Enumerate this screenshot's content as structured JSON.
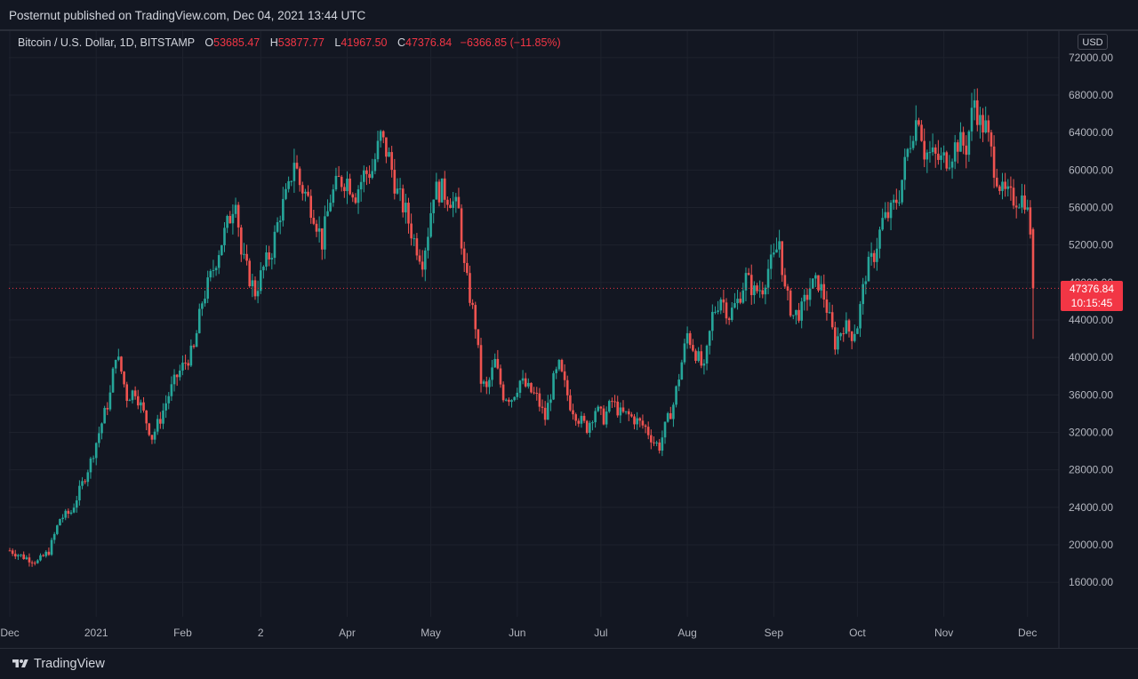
{
  "header": {
    "published": "Posternut published on TradingView.com, Dec 04, 2021 13:44 UTC"
  },
  "legend": {
    "symbol": "Bitcoin / U.S. Dollar, 1D, BITSTAMP",
    "o_key": "O",
    "o_val": "53685.47",
    "h_key": "H",
    "h_val": "53877.77",
    "l_key": "L",
    "l_val": "41967.50",
    "c_key": "C",
    "c_val": "47376.84",
    "change": "−6366.85 (−11.85%)"
  },
  "currency": "USD",
  "price_label": {
    "price": "47376.84",
    "countdown": "10:15:45"
  },
  "footer": {
    "brand": "TradingView"
  },
  "colors": {
    "up": "#26a69a",
    "down": "#ef5350",
    "background": "#131722",
    "grid": "#1e222d",
    "current_price": "#f23645"
  },
  "chart_data": {
    "type": "candlestick",
    "symbol": "BTCUSD",
    "interval": "1D",
    "exchange": "BITSTAMP",
    "ylim": [
      12000,
      75000
    ],
    "y_ticks": [
      16000,
      20000,
      24000,
      28000,
      32000,
      36000,
      40000,
      44000,
      48000,
      52000,
      56000,
      60000,
      64000,
      68000,
      72000
    ],
    "y_tick_labels": [
      "16000.00",
      "20000.00",
      "24000.00",
      "28000.00",
      "32000.00",
      "36000.00",
      "40000.00",
      "44000.00",
      "48000.00",
      "52000.00",
      "56000.00",
      "60000.00",
      "64000.00",
      "68000.00",
      "72000.00"
    ],
    "x_ticks": [
      {
        "label": "Dec",
        "day": 0
      },
      {
        "label": "2021",
        "day": 31
      },
      {
        "label": "Feb",
        "day": 62
      },
      {
        "label": "2",
        "day": 90
      },
      {
        "label": "Apr",
        "day": 121
      },
      {
        "label": "May",
        "day": 151
      },
      {
        "label": "Jun",
        "day": 182
      },
      {
        "label": "Jul",
        "day": 212
      },
      {
        "label": "Aug",
        "day": 243
      },
      {
        "label": "Sep",
        "day": 274
      },
      {
        "label": "Oct",
        "day": 304
      },
      {
        "label": "Nov",
        "day": 335
      },
      {
        "label": "Dec",
        "day": 365
      }
    ],
    "first_day": "2020-12-01",
    "last_price": 47376.84,
    "close_path": [
      [
        0,
        19400
      ],
      [
        5,
        18700
      ],
      [
        10,
        18200
      ],
      [
        14,
        19300
      ],
      [
        18,
        22800
      ],
      [
        22,
        23500
      ],
      [
        26,
        26500
      ],
      [
        29,
        28900
      ],
      [
        33,
        33000
      ],
      [
        36,
        36000
      ],
      [
        38,
        40500
      ],
      [
        40,
        38500
      ],
      [
        42,
        35800
      ],
      [
        45,
        36500
      ],
      [
        48,
        34000
      ],
      [
        51,
        31500
      ],
      [
        54,
        33500
      ],
      [
        57,
        36000
      ],
      [
        60,
        38000
      ],
      [
        63,
        39500
      ],
      [
        66,
        40800
      ],
      [
        69,
        46000
      ],
      [
        72,
        48500
      ],
      [
        75,
        51500
      ],
      [
        79,
        55000
      ],
      [
        81,
        57500
      ],
      [
        83,
        51000
      ],
      [
        86,
        48500
      ],
      [
        88,
        47000
      ],
      [
        91,
        49500
      ],
      [
        94,
        51500
      ],
      [
        97,
        55500
      ],
      [
        100,
        57800
      ],
      [
        102,
        61200
      ],
      [
        104,
        58500
      ],
      [
        106,
        57500
      ],
      [
        109,
        55500
      ],
      [
        112,
        52300
      ],
      [
        115,
        57000
      ],
      [
        118,
        58800
      ],
      [
        121,
        59000
      ],
      [
        124,
        57500
      ],
      [
        127,
        59500
      ],
      [
        130,
        60000
      ],
      [
        133,
        63500
      ],
      [
        136,
        61300
      ],
      [
        139,
        57500
      ],
      [
        142,
        55500
      ],
      [
        145,
        52500
      ],
      [
        148,
        50500
      ],
      [
        150,
        53500
      ],
      [
        152,
        57800
      ],
      [
        155,
        57800
      ],
      [
        158,
        57000
      ],
      [
        161,
        55500
      ],
      [
        163,
        49500
      ],
      [
        165,
        46500
      ],
      [
        167,
        43500
      ],
      [
        169,
        37500
      ],
      [
        171,
        36500
      ],
      [
        174,
        39500
      ],
      [
        177,
        36000
      ],
      [
        180,
        35700
      ],
      [
        183,
        37500
      ],
      [
        186,
        36600
      ],
      [
        189,
        35700
      ],
      [
        192,
        33500
      ],
      [
        195,
        37500
      ],
      [
        197,
        39000
      ],
      [
        199,
        37000
      ],
      [
        201,
        35000
      ],
      [
        204,
        33500
      ],
      [
        207,
        32500
      ],
      [
        210,
        34500
      ],
      [
        213,
        33500
      ],
      [
        216,
        35300
      ],
      [
        219,
        34000
      ],
      [
        222,
        33800
      ],
      [
        225,
        33200
      ],
      [
        228,
        32500
      ],
      [
        231,
        31000
      ],
      [
        233,
        30500
      ],
      [
        235,
        32500
      ],
      [
        238,
        35000
      ],
      [
        241,
        39500
      ],
      [
        243,
        42500
      ],
      [
        246,
        40500
      ],
      [
        249,
        38500
      ],
      [
        252,
        44500
      ],
      [
        255,
        46500
      ],
      [
        258,
        44500
      ],
      [
        261,
        46000
      ],
      [
        264,
        48500
      ],
      [
        267,
        47000
      ],
      [
        270,
        47500
      ],
      [
        272,
        49500
      ],
      [
        274,
        50500
      ],
      [
        276,
        52500
      ],
      [
        278,
        47000
      ],
      [
        281,
        44500
      ],
      [
        284,
        45000
      ],
      [
        287,
        47500
      ],
      [
        290,
        48000
      ],
      [
        292,
        46500
      ],
      [
        294,
        44000
      ],
      [
        296,
        41500
      ],
      [
        299,
        43500
      ],
      [
        302,
        42500
      ],
      [
        304,
        43500
      ],
      [
        307,
        49000
      ],
      [
        310,
        51000
      ],
      [
        313,
        54500
      ],
      [
        316,
        55500
      ],
      [
        319,
        57500
      ],
      [
        322,
        62000
      ],
      [
        324,
        64500
      ],
      [
        326,
        66000
      ],
      [
        328,
        62000
      ],
      [
        331,
        61500
      ],
      [
        334,
        61000
      ],
      [
        337,
        61500
      ],
      [
        340,
        63000
      ],
      [
        343,
        62500
      ],
      [
        346,
        67500
      ],
      [
        348,
        65000
      ],
      [
        350,
        64500
      ],
      [
        353,
        60500
      ],
      [
        356,
        57500
      ],
      [
        359,
        57000
      ],
      [
        362,
        57000
      ],
      [
        364,
        57000
      ],
      [
        366,
        53700
      ],
      [
        367,
        47400
      ]
    ],
    "last_candle": {
      "open": 53685.47,
      "high": 53877.77,
      "low": 41967.5,
      "close": 47376.84
    }
  }
}
